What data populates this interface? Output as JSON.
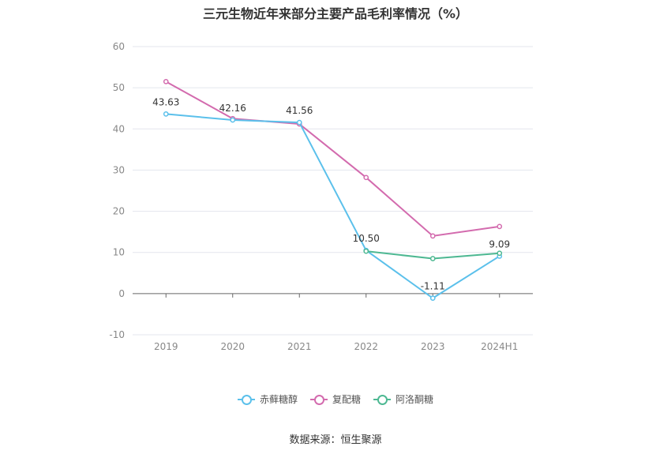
{
  "chart_data": {
    "type": "line",
    "title": "三元生物近年来部分主要产品毛利率情况（%）",
    "categories": [
      "2019",
      "2020",
      "2021",
      "2022",
      "2023",
      "2024H1"
    ],
    "ylim": [
      -10,
      60
    ],
    "yticks": [
      -10,
      0,
      10,
      20,
      30,
      40,
      50,
      60
    ],
    "grid": true,
    "legend_position": "bottom",
    "series": [
      {
        "name": "赤藓糖醇",
        "color": "#5bc0eb",
        "values": [
          43.63,
          42.16,
          41.56,
          10.5,
          -1.11,
          9.09
        ],
        "labels": [
          "43.63",
          "42.16",
          "41.56",
          "10.50",
          "-1.11",
          "9.09"
        ]
      },
      {
        "name": "复配糖",
        "color": "#d36bae",
        "values": [
          51.5,
          42.5,
          41.2,
          28.2,
          14.0,
          16.3
        ]
      },
      {
        "name": "阿洛酮糖",
        "color": "#4db892",
        "values": [
          null,
          null,
          null,
          10.3,
          8.5,
          9.8
        ]
      }
    ]
  },
  "source": "数据来源：恒生聚源"
}
